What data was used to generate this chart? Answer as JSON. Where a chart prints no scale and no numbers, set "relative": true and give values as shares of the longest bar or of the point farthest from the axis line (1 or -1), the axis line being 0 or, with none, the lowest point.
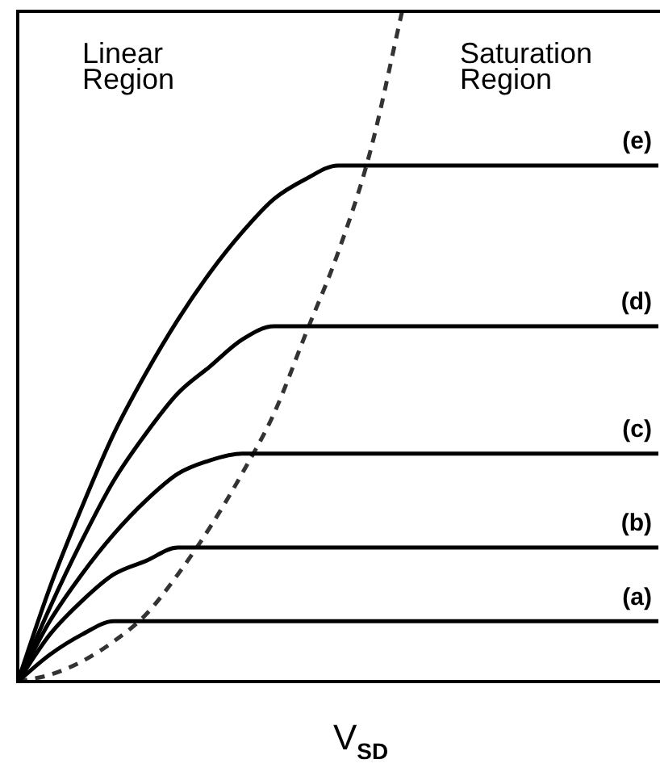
{
  "chart_data": {
    "type": "line",
    "relative": true,
    "xlabel": "V$_{SD}$",
    "annotations": [
      "Linear\nRegion",
      "Saturation\nRegion"
    ],
    "categories": [
      null,
      null,
      null,
      null,
      null,
      null,
      null,
      null,
      null,
      null,
      null,
      null,
      null,
      null,
      null,
      null,
      null,
      null,
      null,
      null,
      null
    ],
    "series": [
      {
        "name": "(a)",
        "color": "#000000",
        "values": [
          0,
          0.04,
          0.07,
          0.09,
          0.09,
          0.09,
          0.09,
          0.09,
          0.09,
          0.09,
          0.09,
          0.09,
          0.09,
          0.09,
          0.09,
          0.09,
          0.09,
          0.09,
          0.09,
          0.09,
          0.09
        ]
      },
      {
        "name": "(b)",
        "color": "#000000",
        "values": [
          0,
          0.07,
          0.12,
          0.16,
          0.18,
          0.2,
          0.2,
          0.2,
          0.2,
          0.2,
          0.2,
          0.2,
          0.2,
          0.2,
          0.2,
          0.2,
          0.2,
          0.2,
          0.2,
          0.2,
          0.2
        ]
      },
      {
        "name": "(c)",
        "color": "#000000",
        "values": [
          0,
          0.09,
          0.16,
          0.22,
          0.27,
          0.31,
          0.33,
          0.34,
          0.34,
          0.34,
          0.34,
          0.34,
          0.34,
          0.34,
          0.34,
          0.34,
          0.34,
          0.34,
          0.34,
          0.34,
          0.34
        ]
      },
      {
        "name": "(d)",
        "color": "#000000",
        "values": [
          0,
          0.11,
          0.21,
          0.3,
          0.37,
          0.43,
          0.47,
          0.51,
          0.53,
          0.53,
          0.53,
          0.53,
          0.53,
          0.53,
          0.53,
          0.53,
          0.53,
          0.53,
          0.53,
          0.53,
          0.53
        ]
      },
      {
        "name": "(e)",
        "color": "#000000",
        "values": [
          0,
          0.14,
          0.26,
          0.37,
          0.46,
          0.54,
          0.61,
          0.67,
          0.72,
          0.75,
          0.77,
          0.77,
          0.77,
          0.77,
          0.77,
          0.77,
          0.77,
          0.77,
          0.77,
          0.77,
          0.77
        ]
      },
      {
        "color": "#333333",
        "line_style": "dashed",
        "values": [
          0,
          0.01,
          0.03,
          0.06,
          0.1,
          0.16,
          0.23,
          0.31,
          0.4,
          0.52,
          0.64,
          0.79,
          1,
          null,
          null,
          null,
          null,
          null,
          null,
          null,
          null
        ]
      }
    ],
    "grid": false,
    "legend": false,
    "tick_labels": false,
    "marker": "none"
  }
}
